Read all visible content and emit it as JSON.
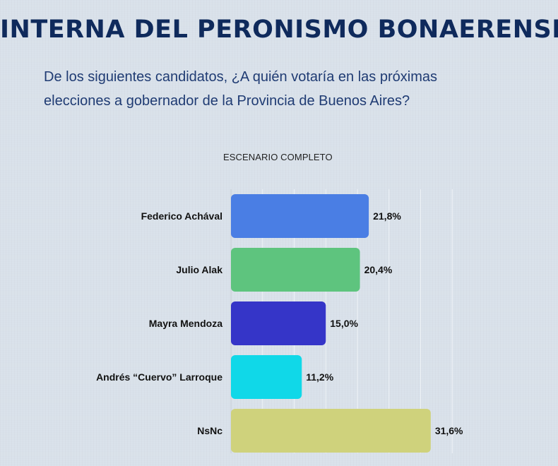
{
  "header": {
    "title": "INTERNA DEL PERONISMO BONAERENSE",
    "question_line1": "De los siguientes candidatos, ¿A quién votaría en las próximas",
    "question_line2": "elecciones a gobernador de la Provincia de Buenos Aires?"
  },
  "chart_data": {
    "type": "bar",
    "orientation": "horizontal",
    "title": "ESCENARIO COMPLETO",
    "categories": [
      "Federico Achával",
      "Julio Alak",
      "Mayra Mendoza",
      "Andrés “Cuervo” Larroque",
      "NsNc"
    ],
    "values": [
      21.8,
      20.4,
      15.0,
      11.2,
      31.6
    ],
    "value_labels": [
      "21,8%",
      "20,4%",
      "15,0%",
      "11,2%",
      "31,6%"
    ],
    "colors": [
      "#4a7ee4",
      "#5ec47e",
      "#3535c8",
      "#10d8e8",
      "#cfd27c"
    ],
    "xlim": [
      0,
      35
    ],
    "grid": true,
    "legend": "none"
  }
}
